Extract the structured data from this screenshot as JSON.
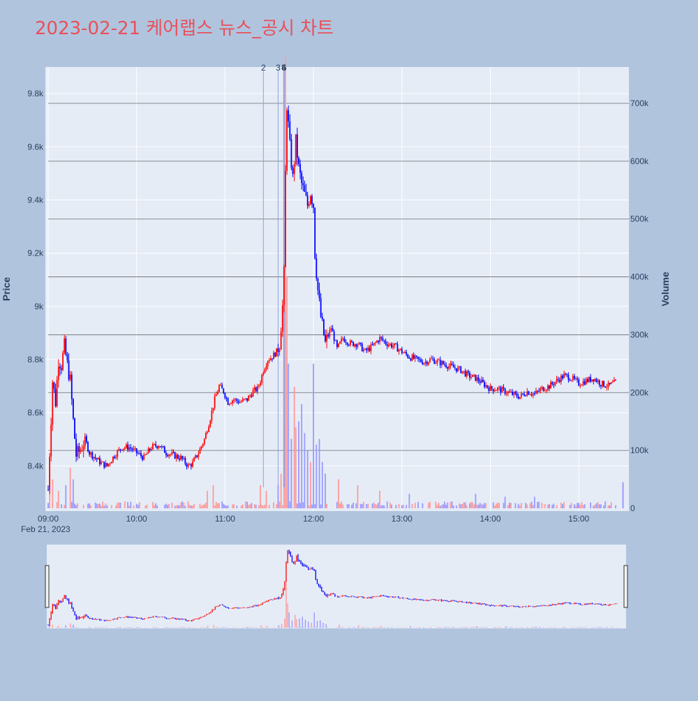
{
  "title": "2023-02-21 케어랩스 뉴스_공시 차트",
  "colors": {
    "background": "#b0c4de",
    "plot_bg": "#e5ecf6",
    "title": "#e8505b",
    "up": "#ff0000",
    "down": "#0000ff",
    "volume_up": "#ff9a9a",
    "volume_down": "#9a9aff",
    "news_line": "#8da0e0",
    "hline": "#6a6a6a"
  },
  "chart_data": {
    "type": "candlestick",
    "date_label": "Feb 21, 2023",
    "xlabel": "",
    "ylabel": "Price",
    "y2label": "Volume",
    "x_range": [
      "09:00",
      "15:30"
    ],
    "x_ticks": [
      "09:00",
      "10:00",
      "11:00",
      "12:00",
      "13:00",
      "14:00",
      "15:00"
    ],
    "y_range": [
      8230,
      9900
    ],
    "y_ticks": [
      8400,
      8600,
      8800,
      9000,
      9200,
      9400,
      9600,
      9800
    ],
    "y_tick_labels": [
      "8.4k",
      "8.6k",
      "8.8k",
      "9k",
      "9.2k",
      "9.4k",
      "9.6k",
      "9.8k"
    ],
    "y2_range": [
      0,
      760000
    ],
    "y2_ticks": [
      0,
      100000,
      200000,
      300000,
      400000,
      500000,
      600000,
      700000
    ],
    "y2_tick_labels": [
      "0",
      "100k",
      "200k",
      "300k",
      "400k",
      "500k",
      "600k",
      "700k"
    ],
    "volume_hlines": [
      100000,
      200000,
      300000,
      400000,
      500000,
      600000,
      700000
    ],
    "news_markers": [
      {
        "label": "2",
        "time": "11:26"
      },
      {
        "label": "3",
        "time": "11:36"
      },
      {
        "label": "4",
        "time": "11:40"
      },
      {
        "label": "5",
        "time": "11:40"
      },
      {
        "label": "6",
        "time": "11:40"
      }
    ],
    "price_anchors": [
      [
        "09:00",
        8310
      ],
      [
        "09:01",
        8450
      ],
      [
        "09:02",
        8580
      ],
      [
        "09:03",
        8720
      ],
      [
        "09:05",
        8640
      ],
      [
        "09:07",
        8800
      ],
      [
        "09:09",
        8780
      ],
      [
        "09:11",
        8850
      ],
      [
        "09:13",
        8780
      ],
      [
        "09:15",
        8720
      ],
      [
        "09:17",
        8570
      ],
      [
        "09:19",
        8440
      ],
      [
        "09:22",
        8460
      ],
      [
        "09:25",
        8500
      ],
      [
        "09:28",
        8450
      ],
      [
        "09:32",
        8430
      ],
      [
        "09:36",
        8410
      ],
      [
        "09:40",
        8400
      ],
      [
        "09:45",
        8440
      ],
      [
        "09:50",
        8470
      ],
      [
        "09:55",
        8470
      ],
      [
        "10:00",
        8450
      ],
      [
        "10:05",
        8430
      ],
      [
        "10:10",
        8470
      ],
      [
        "10:15",
        8480
      ],
      [
        "10:20",
        8450
      ],
      [
        "10:25",
        8440
      ],
      [
        "10:30",
        8430
      ],
      [
        "10:35",
        8400
      ],
      [
        "10:38",
        8410
      ],
      [
        "10:42",
        8450
      ],
      [
        "10:46",
        8500
      ],
      [
        "10:50",
        8580
      ],
      [
        "10:53",
        8650
      ],
      [
        "10:56",
        8700
      ],
      [
        "10:59",
        8680
      ],
      [
        "11:02",
        8640
      ],
      [
        "11:06",
        8650
      ],
      [
        "11:10",
        8640
      ],
      [
        "11:15",
        8650
      ],
      [
        "11:19",
        8680
      ],
      [
        "11:22",
        8690
      ],
      [
        "11:24",
        8720
      ],
      [
        "11:26",
        8760
      ],
      [
        "11:29",
        8800
      ],
      [
        "11:32",
        8810
      ],
      [
        "11:35",
        8830
      ],
      [
        "11:37",
        8860
      ],
      [
        "11:39",
        9000
      ],
      [
        "11:40",
        9120
      ],
      [
        "11:41",
        9500
      ],
      [
        "11:42",
        9760
      ],
      [
        "11:44",
        9600
      ],
      [
        "11:46",
        9480
      ],
      [
        "11:48",
        9620
      ],
      [
        "11:50",
        9520
      ],
      [
        "11:52",
        9460
      ],
      [
        "11:54",
        9420
      ],
      [
        "11:56",
        9380
      ],
      [
        "11:58",
        9430
      ],
      [
        "12:00",
        9380
      ],
      [
        "12:01",
        9200
      ],
      [
        "12:03",
        9060
      ],
      [
        "12:05",
        8960
      ],
      [
        "12:08",
        8860
      ],
      [
        "12:12",
        8920
      ],
      [
        "12:16",
        8840
      ],
      [
        "12:20",
        8880
      ],
      [
        "12:25",
        8860
      ],
      [
        "12:30",
        8860
      ],
      [
        "12:35",
        8830
      ],
      [
        "12:40",
        8850
      ],
      [
        "12:45",
        8880
      ],
      [
        "12:50",
        8860
      ],
      [
        "12:55",
        8850
      ],
      [
        "13:00",
        8830
      ],
      [
        "13:05",
        8810
      ],
      [
        "13:10",
        8800
      ],
      [
        "13:15",
        8790
      ],
      [
        "13:20",
        8800
      ],
      [
        "13:25",
        8790
      ],
      [
        "13:30",
        8780
      ],
      [
        "13:35",
        8770
      ],
      [
        "13:40",
        8760
      ],
      [
        "13:45",
        8740
      ],
      [
        "13:50",
        8730
      ],
      [
        "13:55",
        8710
      ],
      [
        "14:00",
        8690
      ],
      [
        "14:05",
        8690
      ],
      [
        "14:10",
        8680
      ],
      [
        "14:15",
        8670
      ],
      [
        "14:20",
        8660
      ],
      [
        "14:25",
        8680
      ],
      [
        "14:30",
        8670
      ],
      [
        "14:35",
        8690
      ],
      [
        "14:40",
        8700
      ],
      [
        "14:45",
        8720
      ],
      [
        "14:50",
        8740
      ],
      [
        "14:55",
        8730
      ],
      [
        "15:00",
        8710
      ],
      [
        "15:05",
        8720
      ],
      [
        "15:10",
        8730
      ],
      [
        "15:15",
        8710
      ],
      [
        "15:20",
        8700
      ],
      [
        "15:25",
        8715
      ]
    ],
    "volume_spikes": [
      [
        "09:01",
        60000
      ],
      [
        "09:03",
        50000
      ],
      [
        "09:07",
        30000
      ],
      [
        "09:12",
        40000
      ],
      [
        "09:15",
        70000
      ],
      [
        "09:17",
        50000
      ],
      [
        "10:48",
        30000
      ],
      [
        "10:52",
        40000
      ],
      [
        "11:24",
        40000
      ],
      [
        "11:28",
        30000
      ],
      [
        "11:36",
        40000
      ],
      [
        "11:38",
        60000
      ],
      [
        "11:40",
        150000
      ],
      [
        "11:41",
        780000
      ],
      [
        "11:42",
        400000
      ],
      [
        "11:43",
        250000
      ],
      [
        "11:45",
        120000
      ],
      [
        "11:47",
        210000
      ],
      [
        "11:48",
        140000
      ],
      [
        "11:50",
        150000
      ],
      [
        "11:52",
        180000
      ],
      [
        "11:54",
        130000
      ],
      [
        "11:56",
        100000
      ],
      [
        "11:58",
        80000
      ],
      [
        "12:00",
        250000
      ],
      [
        "12:02",
        110000
      ],
      [
        "12:04",
        120000
      ],
      [
        "12:06",
        80000
      ],
      [
        "12:08",
        60000
      ],
      [
        "12:17",
        50000
      ],
      [
        "12:30",
        40000
      ],
      [
        "12:45",
        30000
      ],
      [
        "13:05",
        25000
      ],
      [
        "13:50",
        25000
      ],
      [
        "14:10",
        20000
      ],
      [
        "14:30",
        20000
      ],
      [
        "15:30",
        45000
      ]
    ]
  }
}
